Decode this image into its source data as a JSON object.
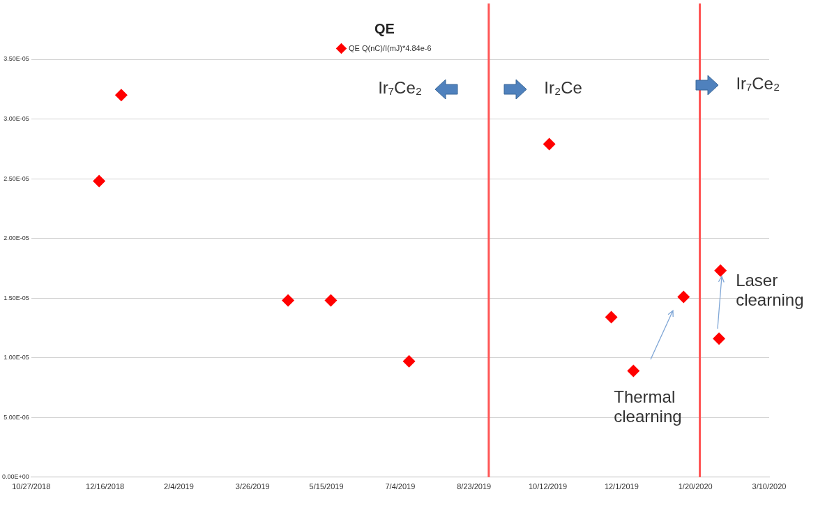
{
  "chart_data": {
    "type": "scatter",
    "title": "QE",
    "marker": "diamond",
    "grid": "y",
    "legend": "top",
    "x": [
      "2018-12-12",
      "2018-12-27",
      "2019-04-19",
      "2019-05-18",
      "2019-07-10",
      "2019-10-13",
      "2019-11-24",
      "2019-12-09",
      "2020-01-12",
      "2020-02-05",
      "2020-02-06"
    ],
    "series": [
      {
        "name": "QE Q(nC)/I(mJ)*4.84e-6",
        "color": "#ff0000",
        "values": [
          2.48e-05,
          3.2e-05,
          1.48e-05,
          1.48e-05,
          9.7e-06,
          2.79e-05,
          1.34e-05,
          8.9e-06,
          1.51e-05,
          1.16e-05,
          1.73e-05
        ]
      }
    ],
    "xlim": [
      "2018-10-27",
      "2020-03-10"
    ],
    "xticks": [
      {
        "value": "2018-10-27",
        "label": "10/27/2018"
      },
      {
        "value": "2018-12-16",
        "label": "12/16/2018"
      },
      {
        "value": "2019-02-04",
        "label": "2/4/2019"
      },
      {
        "value": "2019-03-26",
        "label": "3/26/2019"
      },
      {
        "value": "2019-05-15",
        "label": "5/15/2019"
      },
      {
        "value": "2019-07-04",
        "label": "7/4/2019"
      },
      {
        "value": "2019-08-23",
        "label": "8/23/2019"
      },
      {
        "value": "2019-10-12",
        "label": "10/12/2019"
      },
      {
        "value": "2019-12-01",
        "label": "12/1/2019"
      },
      {
        "value": "2020-01-20",
        "label": "1/20/2020"
      },
      {
        "value": "2020-03-10",
        "label": "3/10/2020"
      }
    ],
    "ylim": [
      0,
      3.5e-05
    ],
    "yticks": [
      {
        "value": 0,
        "label": "0.00E+00"
      },
      {
        "value": 5e-06,
        "label": "5.00E-06"
      },
      {
        "value": 1e-05,
        "label": "1.00E-05"
      },
      {
        "value": 1.5e-05,
        "label": "1.50E-05"
      },
      {
        "value": 2e-05,
        "label": "2.00E-05"
      },
      {
        "value": 2.5e-05,
        "label": "2.50E-05"
      },
      {
        "value": 3e-05,
        "label": "3.00E-05"
      },
      {
        "value": 3.5e-05,
        "label": "3.50E-05"
      }
    ],
    "ref_lines": [
      {
        "axis": "x",
        "value": "2019-09-02",
        "color": "#ff5555"
      },
      {
        "axis": "x",
        "value": "2020-01-23",
        "color": "#ff5555"
      }
    ],
    "annotations": [
      "Ir₇Ce₂",
      "Ir₂Ce",
      "Ir₇Ce₂",
      "Thermal clearning",
      "Laser clearning"
    ]
  }
}
